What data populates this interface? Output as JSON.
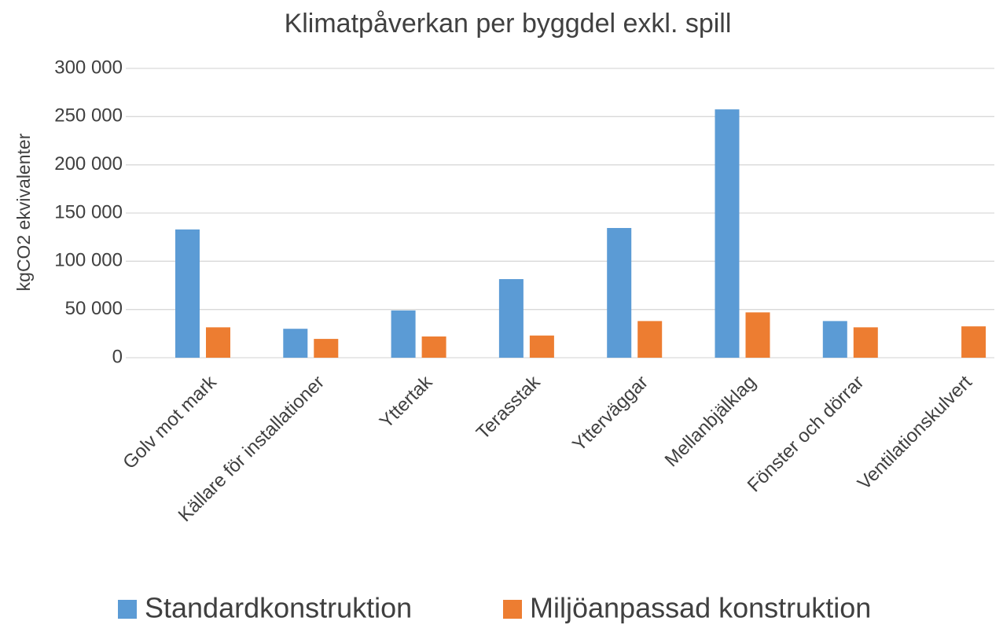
{
  "chart_data": {
    "type": "bar",
    "title": "Klimatpåverkan per byggdel exkl. spill",
    "y_label": "kgCO2 ekvivalenter",
    "categories": [
      "Golv mot mark",
      "Källare för installationer",
      "Yttertak",
      "Terasstak",
      "Ytterväggar",
      "Mellanbjälklag",
      "Fönster och dörrar",
      "Ventilationskulvert"
    ],
    "series": [
      {
        "name": "Standardkonstruktion",
        "color": "#5b9bd5",
        "values": [
          133000,
          30000,
          49000,
          81500,
          134500,
          257500,
          38000,
          0
        ]
      },
      {
        "name": "Miljöanpassad konstruktion",
        "color": "#ed7d31",
        "values": [
          31500,
          19500,
          22000,
          23000,
          38000,
          47000,
          31500,
          32500
        ]
      }
    ],
    "ylim": [
      0,
      300000
    ],
    "yticks": [
      0,
      {
        "value": 50000,
        "label": "50 000"
      },
      {
        "value": 100000,
        "label": "100 000"
      },
      {
        "value": 150000,
        "label": "150 000"
      },
      {
        "value": 200000,
        "label": "200 000"
      },
      {
        "value": 250000,
        "label": "250 000"
      },
      {
        "value": 300000,
        "label": "300 000"
      }
    ],
    "grid": true,
    "legend": "bottom"
  }
}
